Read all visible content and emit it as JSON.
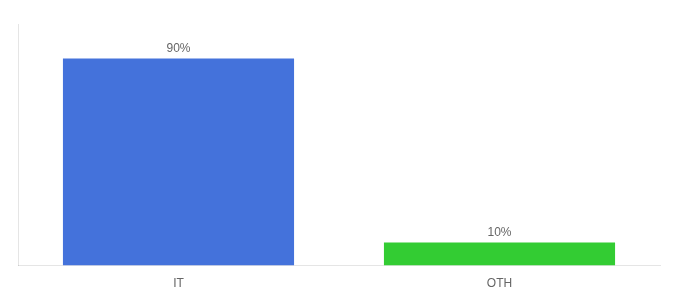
{
  "chart_data": {
    "type": "bar",
    "categories": [
      "IT",
      "OTH"
    ],
    "values": [
      90,
      10
    ],
    "value_labels": [
      "90%",
      "10%"
    ],
    "colors": [
      "#4472db",
      "#33cc33"
    ],
    "ylim": [
      0,
      105
    ],
    "yticks": [],
    "data_labels": true,
    "tick_labels": "x",
    "grid": false
  }
}
